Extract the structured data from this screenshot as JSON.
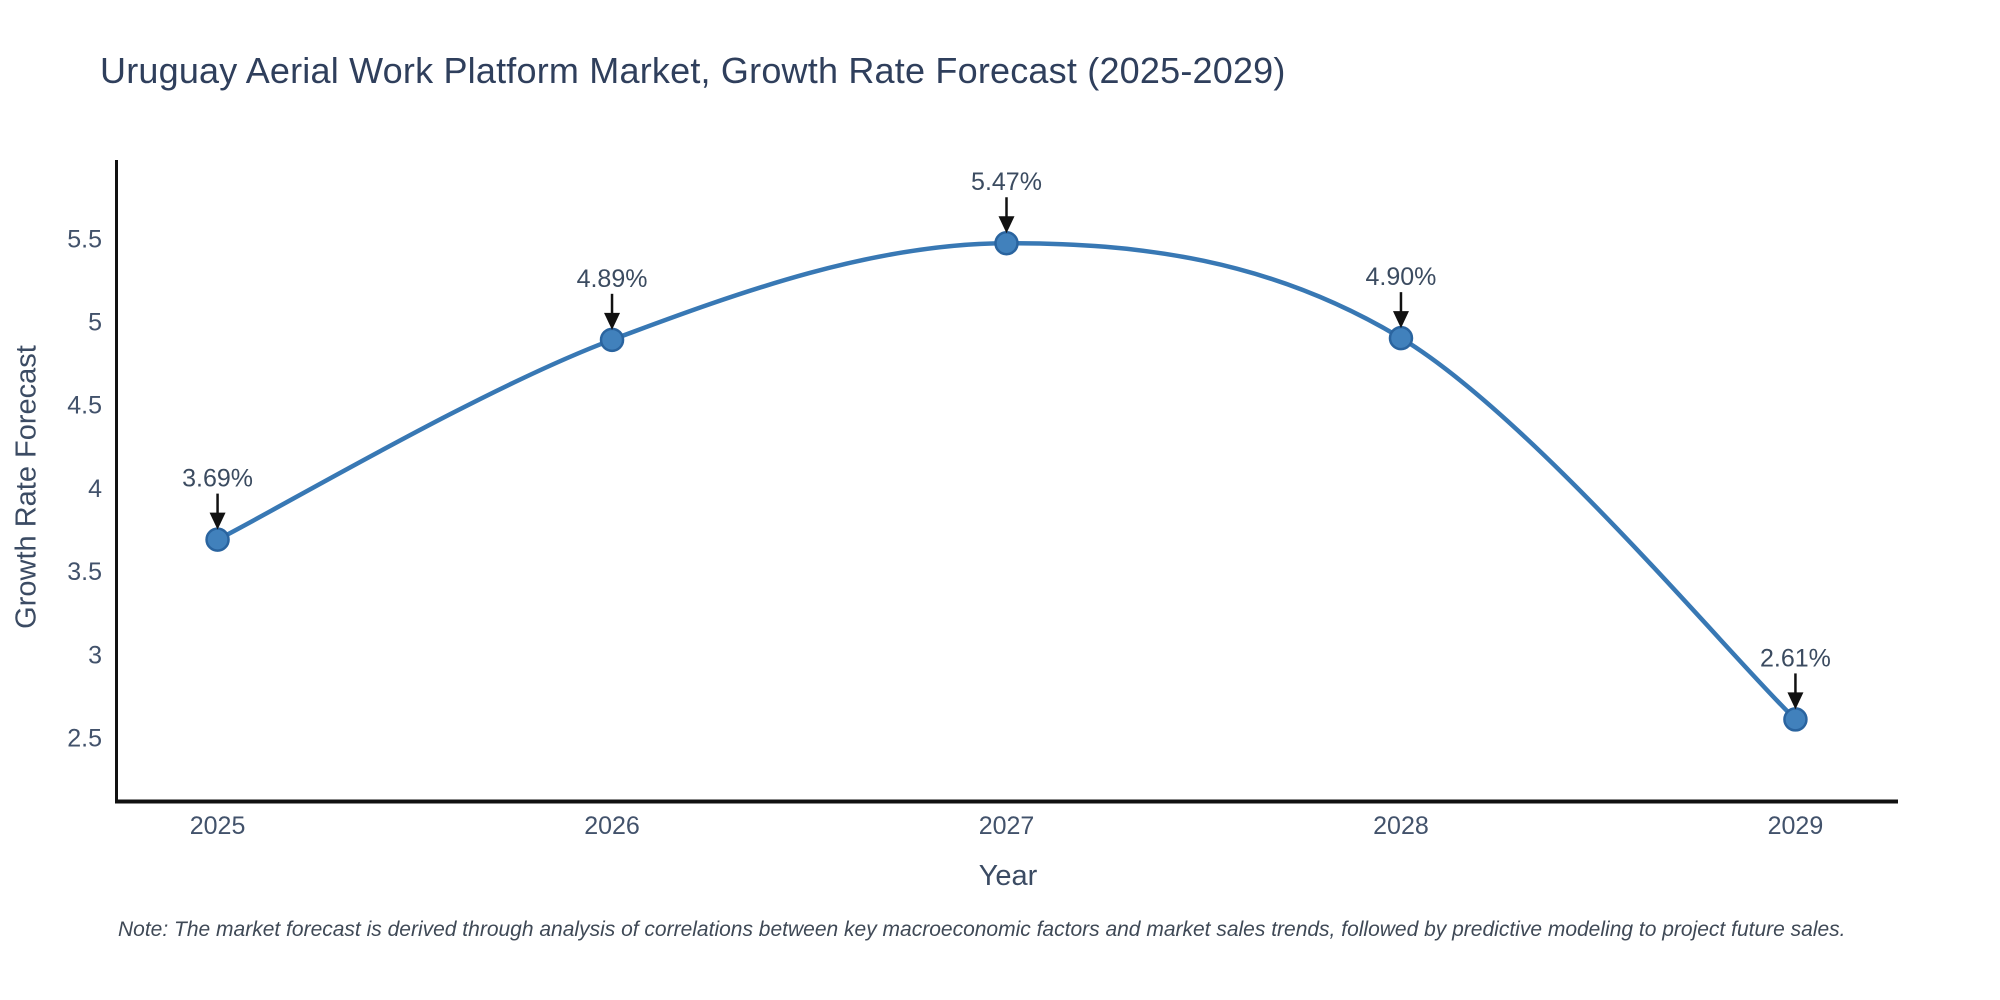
{
  "chart_data": {
    "type": "line",
    "title": "Uruguay Aerial Work Platform Market, Growth Rate Forecast (2025-2029)",
    "xlabel": "Year",
    "ylabel": "Growth Rate Forecast",
    "x": [
      2025,
      2026,
      2027,
      2028,
      2029
    ],
    "values": [
      3.69,
      4.89,
      5.47,
      4.9,
      2.61
    ],
    "point_labels": [
      "3.69%",
      "4.89%",
      "5.47%",
      "4.90%",
      "2.61%"
    ],
    "xticks": [
      "2025",
      "2026",
      "2027",
      "2028",
      "2029"
    ],
    "yticks": [
      "2.5",
      "3",
      "3.5",
      "4",
      "4.5",
      "5",
      "5.5"
    ],
    "ytick_values": [
      2.5,
      3,
      3.5,
      4,
      4.5,
      5,
      5.5
    ],
    "xlim": [
      2024.74,
      2029.26
    ],
    "ylim": [
      2.12,
      5.97
    ],
    "grid": false,
    "legend": "none",
    "line_shape": "spline",
    "marker": "circle",
    "annotation_style": "value label with downward black arrow to each point",
    "colors": {
      "line": "#3878b4",
      "marker_fill": "#4181bc",
      "marker_stroke": "#2a649f",
      "arrow": "#111111",
      "axis": "#111111",
      "title_text": "#2f3f5c",
      "axis_title_text": "#3b4b63",
      "tick_text": "#42526b",
      "annotation_text": "#3b4b60",
      "note_text": "#3f4956",
      "background": "#ffffff"
    }
  },
  "note": "Note: The market forecast is derived through analysis of correlations between key macroeconomic factors and market sales trends, followed by predictive modeling to project future sales."
}
